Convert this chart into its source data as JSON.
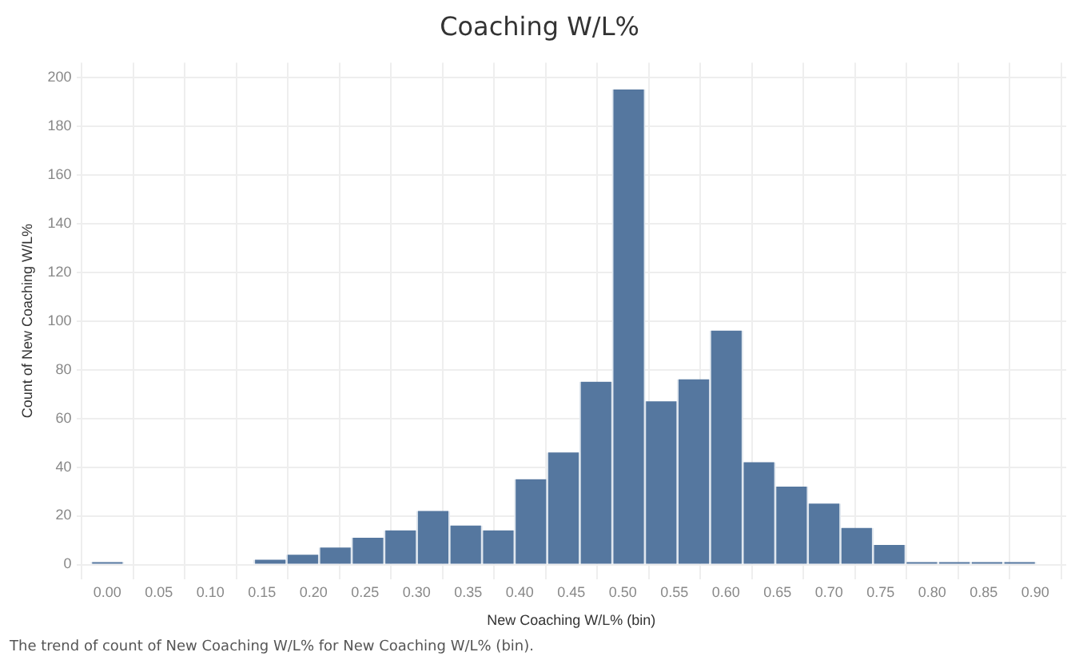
{
  "chart_data": {
    "type": "histogram",
    "title": "Coaching W/L%",
    "xlabel": "New Coaching W/L% (bin)",
    "ylabel": "Count of New Coaching W/L%",
    "bins": [
      -0.0158,
      0.0158,
      0.0474,
      0.079,
      0.1106,
      0.1422,
      0.1738,
      0.2054,
      0.237,
      0.2686,
      0.3002,
      0.3318,
      0.3634,
      0.395,
      0.4266,
      0.4582,
      0.4898,
      0.5214,
      0.553,
      0.5846,
      0.6162,
      0.6478,
      0.6794,
      0.711,
      0.7426,
      0.7742,
      0.8058,
      0.8374,
      0.869,
      0.9006
    ],
    "values": [
      1,
      0,
      0,
      0,
      0,
      2,
      4,
      7,
      11,
      14,
      22,
      16,
      14,
      35,
      46,
      75,
      195,
      67,
      76,
      96,
      42,
      32,
      25,
      15,
      8,
      1,
      1,
      1,
      1
    ],
    "color": "#55779f",
    "xlim": [
      -0.03,
      0.93
    ],
    "xticks": [
      {
        "value": 0,
        "label": "0.00"
      },
      {
        "value": 0.05,
        "label": "0.05"
      },
      {
        "value": 0.1,
        "label": "0.10"
      },
      {
        "value": 0.15,
        "label": "0.15"
      },
      {
        "value": 0.2,
        "label": "0.20"
      },
      {
        "value": 0.25,
        "label": "0.25"
      },
      {
        "value": 0.3,
        "label": "0.30"
      },
      {
        "value": 0.35,
        "label": "0.35"
      },
      {
        "value": 0.4,
        "label": "0.40"
      },
      {
        "value": 0.45,
        "label": "0.45"
      },
      {
        "value": 0.5,
        "label": "0.50"
      },
      {
        "value": 0.55,
        "label": "0.55"
      },
      {
        "value": 0.6,
        "label": "0.60"
      },
      {
        "value": 0.65,
        "label": "0.65"
      },
      {
        "value": 0.7,
        "label": "0.70"
      },
      {
        "value": 0.75,
        "label": "0.75"
      },
      {
        "value": 0.8,
        "label": "0.80"
      },
      {
        "value": 0.85,
        "label": "0.85"
      },
      {
        "value": 0.9,
        "label": "0.90"
      }
    ],
    "ylim": [
      -6,
      206
    ],
    "yticks": [
      0,
      20,
      40,
      60,
      80,
      100,
      120,
      140,
      160,
      180,
      200
    ],
    "grid": true,
    "annotations": [
      "The trend of count of New Coaching W/L% for New Coaching W/L% (bin)."
    ]
  }
}
